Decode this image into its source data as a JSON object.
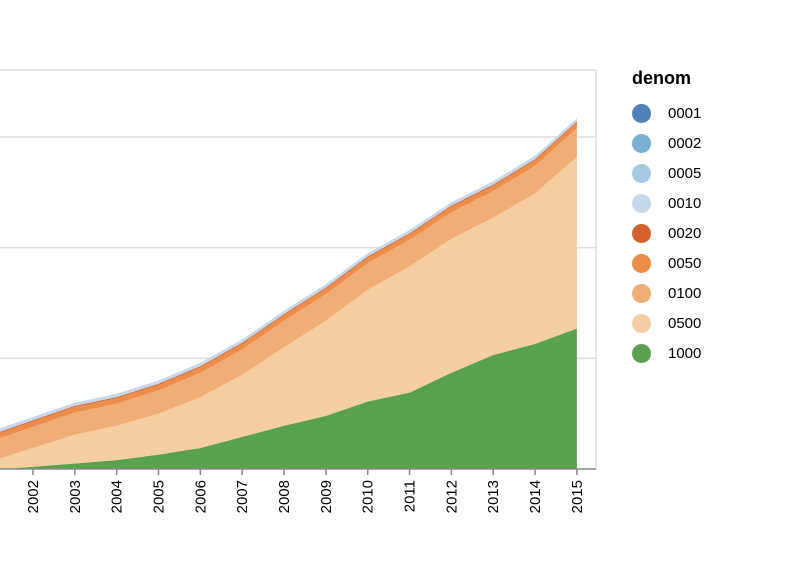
{
  "chart_data": {
    "type": "area",
    "stacked": true,
    "x": [
      2002,
      2003,
      2004,
      2005,
      2006,
      2007,
      2008,
      2009,
      2010,
      2011,
      2012,
      2013,
      2014,
      2015
    ],
    "x_tick_labels": [
      "2002",
      "2003",
      "2004",
      "2005",
      "2006",
      "2007",
      "2008",
      "2009",
      "2010",
      "2011",
      "2012",
      "2013",
      "2014",
      "2015"
    ],
    "xlim": [
      2001.5,
      2015
    ],
    "ylim": [
      0,
      4
    ],
    "y_gridlines": [
      1,
      2,
      3,
      4
    ],
    "legend": {
      "title": "denom",
      "position": "right"
    },
    "series": [
      {
        "name": "1000",
        "color": "#59A14F",
        "values": [
          0.02,
          0.05,
          0.08,
          0.13,
          0.19,
          0.29,
          0.39,
          0.48,
          0.61,
          0.69,
          0.87,
          1.03,
          1.13,
          1.27
        ]
      },
      {
        "name": "0500",
        "color": "#F5CEA3",
        "values": [
          0.17,
          0.26,
          0.31,
          0.37,
          0.46,
          0.56,
          0.71,
          0.86,
          1.01,
          1.14,
          1.21,
          1.24,
          1.36,
          1.55
        ]
      },
      {
        "name": "0100",
        "color": "#F0AE76",
        "values": [
          0.19,
          0.2,
          0.2,
          0.21,
          0.22,
          0.23,
          0.24,
          0.24,
          0.24,
          0.24,
          0.24,
          0.24,
          0.25,
          0.26
        ]
      },
      {
        "name": "0050",
        "color": "#EC8E4A",
        "values": [
          0.05,
          0.05,
          0.05,
          0.05,
          0.05,
          0.05,
          0.05,
          0.05,
          0.05,
          0.05,
          0.05,
          0.05,
          0.05,
          0.05
        ]
      },
      {
        "name": "0020",
        "color": "#D4622E",
        "values": [
          0.01,
          0.01,
          0.01,
          0.01,
          0.01,
          0.01,
          0.01,
          0.01,
          0.01,
          0.01,
          0.01,
          0.01,
          0.01,
          0.01
        ]
      },
      {
        "name": "0010",
        "color": "#C6D8EE",
        "values": [
          0.03,
          0.03,
          0.03,
          0.03,
          0.03,
          0.03,
          0.03,
          0.03,
          0.03,
          0.03,
          0.03,
          0.03,
          0.03,
          0.03
        ]
      },
      {
        "name": "0005",
        "color": "#A4CBE3",
        "values": [
          0.0,
          0.0,
          0.0,
          0.0,
          0.0,
          0.0,
          0.0,
          0.0,
          0.0,
          0.0,
          0.0,
          0.0,
          0.0,
          0.0
        ]
      },
      {
        "name": "0002",
        "color": "#7AAFD6",
        "values": [
          0.0,
          0.0,
          0.0,
          0.0,
          0.0,
          0.0,
          0.0,
          0.0,
          0.0,
          0.0,
          0.0,
          0.0,
          0.0,
          0.0
        ]
      },
      {
        "name": "0001",
        "color": "#4F81B8",
        "values": [
          0.0,
          0.0,
          0.0,
          0.0,
          0.0,
          0.0,
          0.0,
          0.0,
          0.0,
          0.0,
          0.0,
          0.0,
          0.0,
          0.0
        ]
      }
    ]
  },
  "legend_items": [
    {
      "label": "0001",
      "color": "#4F81B8"
    },
    {
      "label": "0002",
      "color": "#7AAFD6"
    },
    {
      "label": "0005",
      "color": "#A4CBE3"
    },
    {
      "label": "0010",
      "color": "#C6D8EE"
    },
    {
      "label": "0020",
      "color": "#D4622E"
    },
    {
      "label": "0050",
      "color": "#EC8E4A"
    },
    {
      "label": "0100",
      "color": "#F0AE76"
    },
    {
      "label": "0500",
      "color": "#F5CEA3"
    },
    {
      "label": "1000",
      "color": "#59A14F"
    }
  ]
}
